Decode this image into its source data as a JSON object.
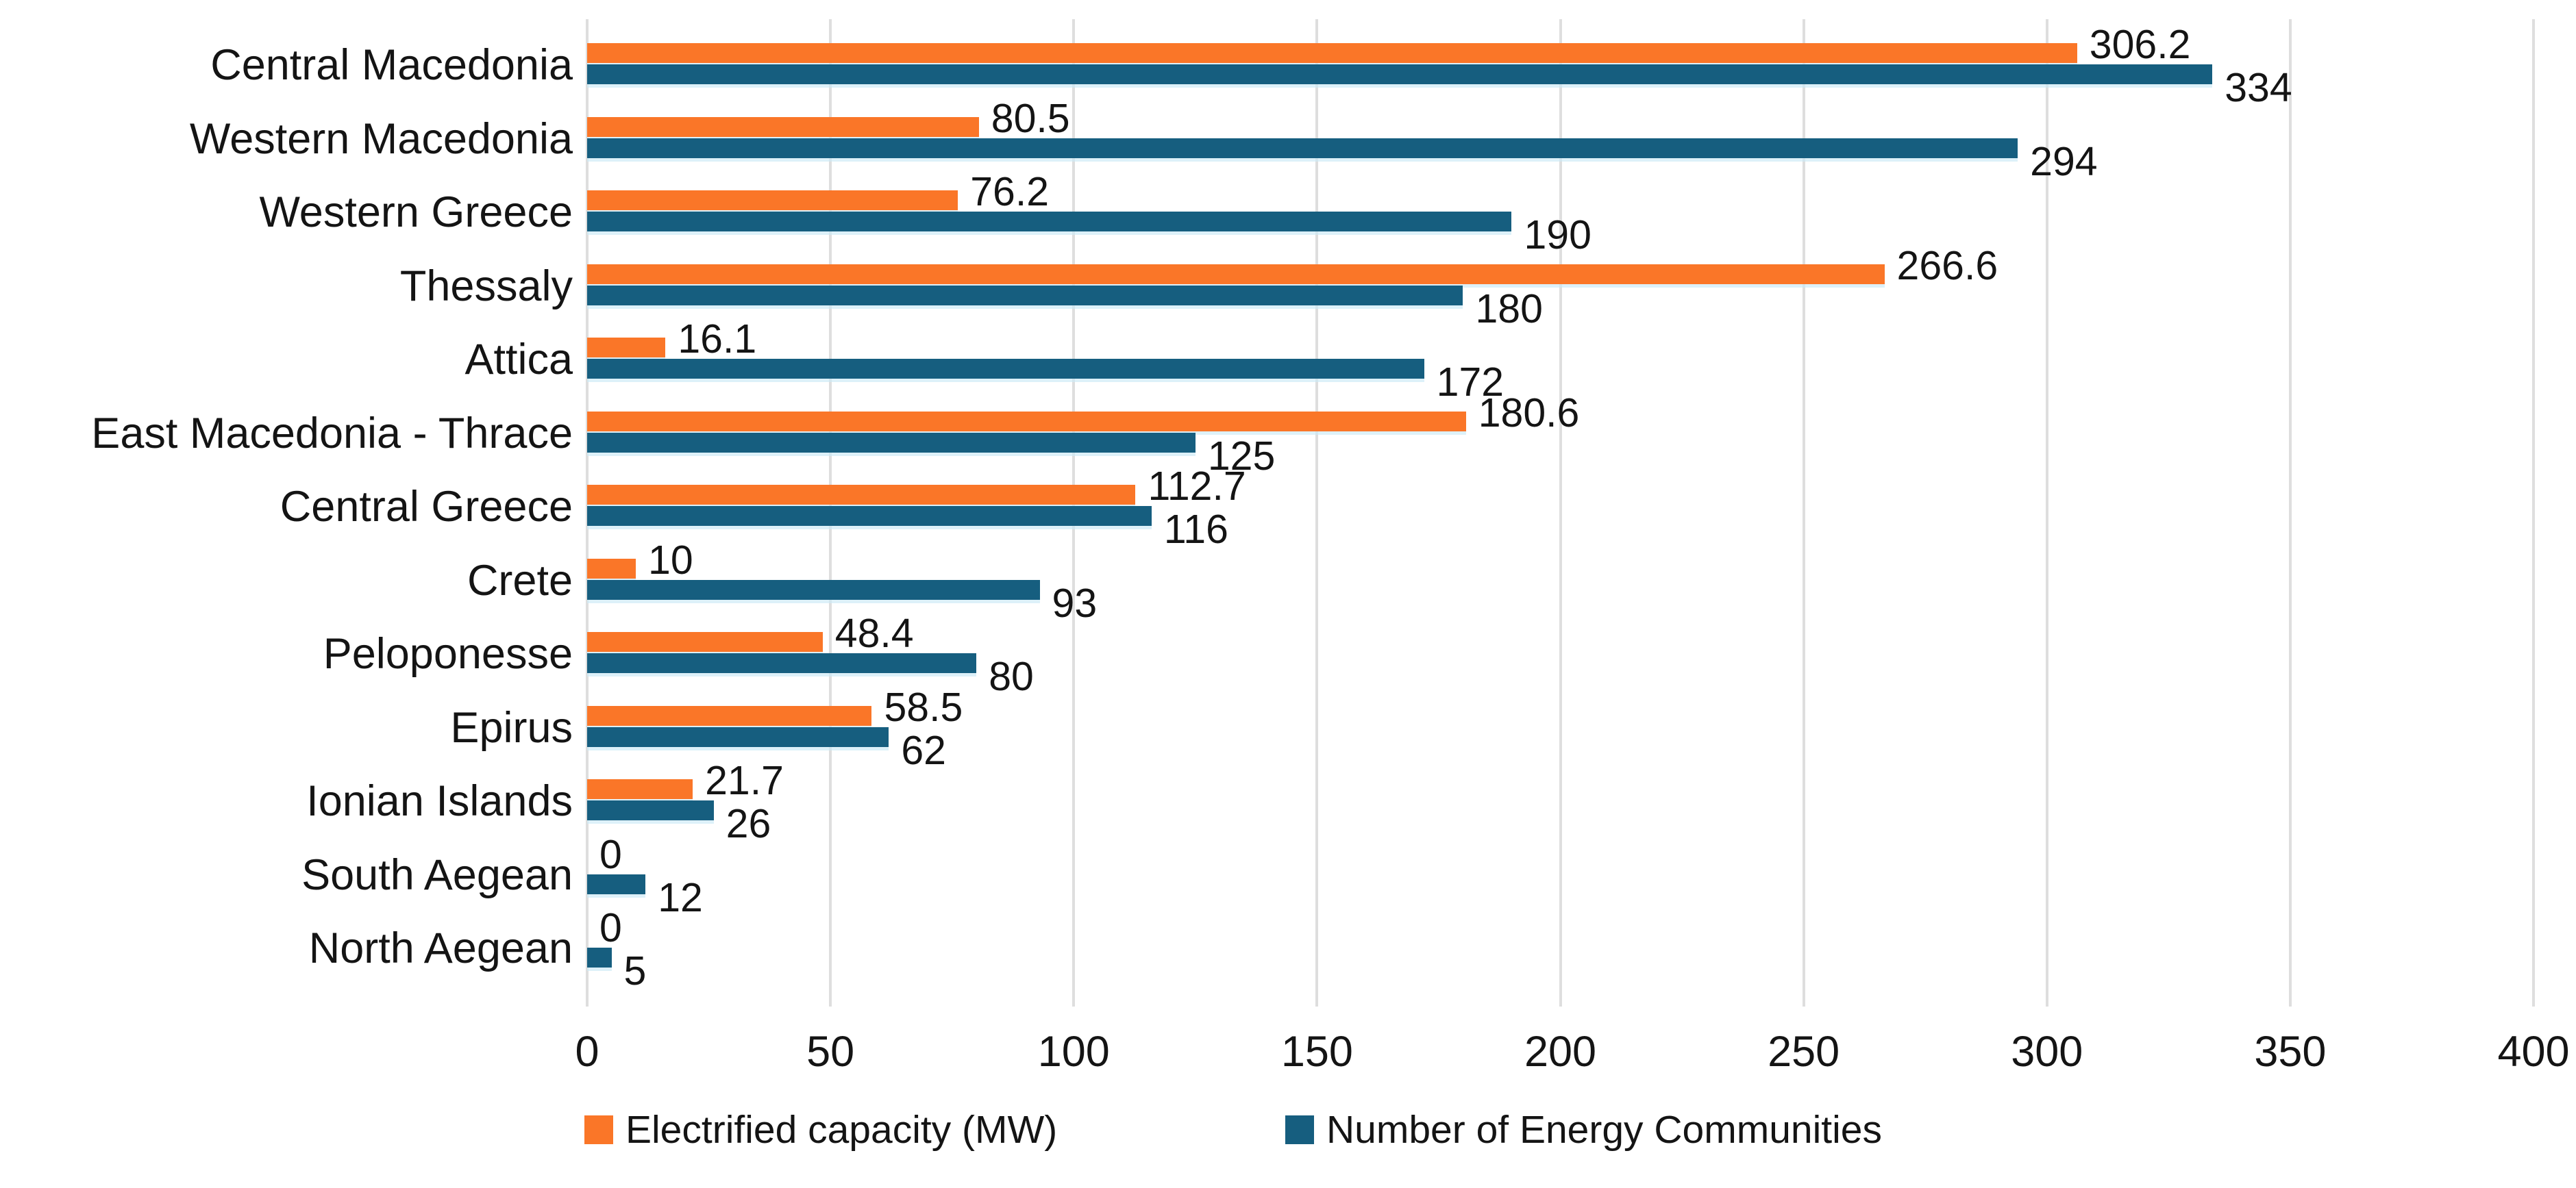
{
  "chart_data": {
    "type": "bar",
    "orientation": "horizontal",
    "title": "",
    "xlabel": "",
    "ylabel": "",
    "categories": [
      "Central Macedonia",
      "Western Macedonia",
      "Western Greece",
      "Thessaly",
      "Attica",
      "East Macedonia - Thrace",
      "Central Greece",
      "Crete",
      "Peloponesse",
      "Epirus",
      "Ionian Islands",
      "South Aegean",
      "North Aegean"
    ],
    "series": [
      {
        "name": "Electrified capacity (MW)",
        "color": "#FA7628",
        "values": [
          306.2,
          80.5,
          76.2,
          266.6,
          16.1,
          180.6,
          112.7,
          10,
          48.4,
          58.5,
          21.7,
          0,
          0
        ]
      },
      {
        "name": "Number of Energy Communities",
        "color": "#165E7F",
        "values": [
          334,
          294,
          190,
          180,
          172,
          125,
          116,
          93,
          80,
          62,
          26,
          12,
          5
        ]
      }
    ],
    "xlim": [
      0,
      400
    ],
    "x_ticks": [
      0,
      50,
      100,
      150,
      200,
      250,
      300,
      350,
      400
    ],
    "grid": "vertical",
    "gridline_color": "#DEDEDE",
    "legend_position": "bottom",
    "value_labels": "outside-end"
  }
}
